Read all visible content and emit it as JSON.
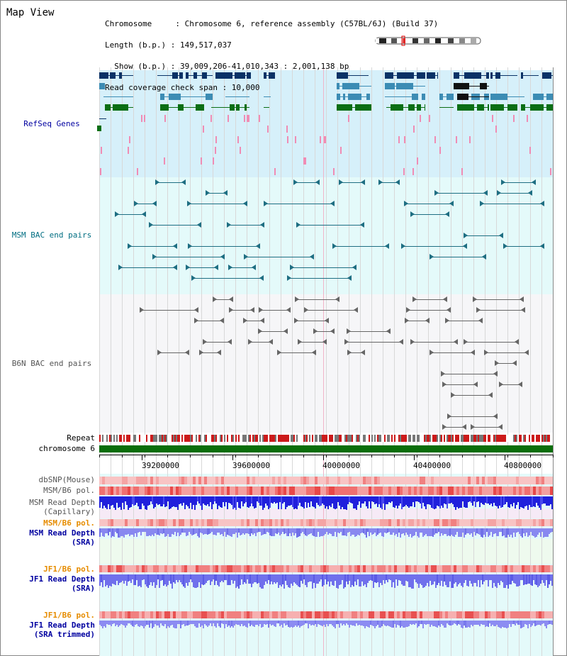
{
  "page": {
    "title": "Map View"
  },
  "info": {
    "chromosome_line": "Chromosome     : Chromosome 6, reference assembly (C57BL/6J) (Build 37)",
    "length_line": "Length (b.p.) : 149,517,037",
    "show_line": "  Show (b.p.) : 39,009,206-41,010,343 : 2,001,138 bp",
    "coverage_line": "Read coverage check span : 10,000"
  },
  "tracks": {
    "refseq": "RefSeq Genes",
    "msm_bac": "MSM BAC end pairs",
    "b6n_bac": "B6N BAC end pairs",
    "repeat": "Repeat",
    "chromosome": "chromosome 6"
  },
  "axis": {
    "ticks": [
      "39200000",
      "39600000",
      "40000000",
      "40400000",
      "40800000"
    ]
  },
  "data_tracks": {
    "dbsnp": "dbSNP(Mouse)",
    "msm_b6_pol": "MSM/B6 pol.",
    "msm_depth_cap_1": "MSM Read Depth",
    "msm_depth_cap_2": "(Capillary)",
    "msm_b6_pol_2": "MSM/B6 pol.",
    "msm_depth_sra_1": "MSM Read Depth",
    "msm_depth_sra_2": "(SRA)",
    "jf1_b6_pol": "JF1/B6 pol.",
    "jf1_depth_sra_1": "JF1 Read Depth",
    "jf1_depth_sra_2": "(SRA)",
    "jf1_b6_pol_2": "JF1/B6 pol.",
    "jf1_depth_trim_1": "JF1 Read Depth",
    "jf1_depth_trim_2": "(SRA trimmed)"
  },
  "colors": {
    "refseq_bg": "#d6f0fa",
    "msm_bg": "#e4fafa",
    "b6n_bg": "#f6f6f8",
    "data_bg": "#e4fafa",
    "navy": "#0a3266",
    "steel": "#3c8cb4",
    "green": "#0a6e14",
    "pink": "#f08cb4",
    "teal": "#1e6e82",
    "grey": "#666666",
    "chrom_green": "#0a6e0a",
    "label_blue": "#0000a0",
    "label_teal": "#006e82",
    "label_orange": "#e68c00",
    "label_grey": "#555555"
  }
}
